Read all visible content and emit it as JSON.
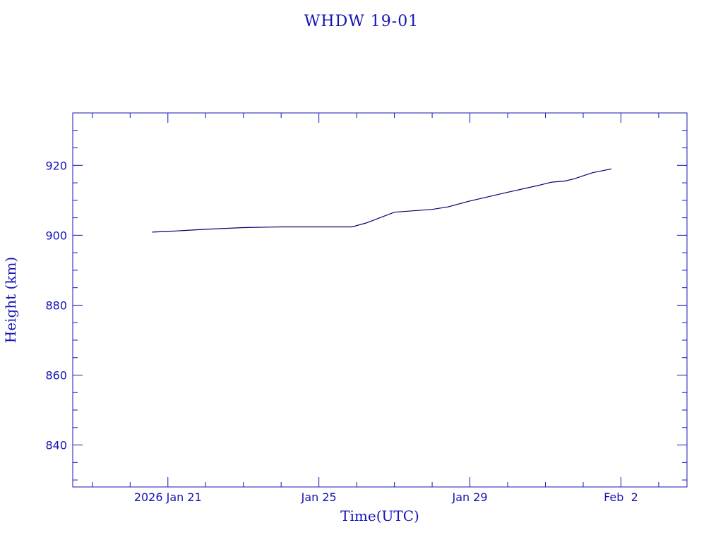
{
  "colors": {
    "axis": "#1414b4",
    "line": "#00006e",
    "background": "#ffffff"
  },
  "chart_data": {
    "type": "line",
    "title": "WHDW 19-01",
    "xlabel": "Time(UTC)",
    "ylabel": "Height (km)",
    "x_unit": "date (UTC), 2026",
    "xlim": [
      "2026-01-18T11:30",
      "2026-02-03T18:00"
    ],
    "ylim": [
      828,
      935
    ],
    "x_tick_labels": [
      "2026 Jan 21",
      "Jan 25",
      "Jan 29",
      "Feb  2"
    ],
    "x_tick_dates": [
      "2026-01-21",
      "2026-01-25",
      "2026-01-29",
      "2026-02-02"
    ],
    "y_ticks": [
      840,
      860,
      880,
      900,
      920
    ],
    "grid": false,
    "series": [
      {
        "x": [
          "2026-01-20T14:00",
          "2026-01-21T00:00",
          "2026-01-22T00:00",
          "2026-01-23T00:00",
          "2026-01-24T00:00",
          "2026-01-25T00:00",
          "2026-01-25T21:00",
          "2026-01-26T06:00",
          "2026-01-27T00:00",
          "2026-01-28T00:00",
          "2026-01-28T10:00",
          "2026-01-29T00:00",
          "2026-01-30T00:00",
          "2026-01-30T19:00",
          "2026-01-31T04:00",
          "2026-01-31T12:00",
          "2026-01-31T18:00",
          "2026-02-01T06:00",
          "2026-02-01T18:00"
        ],
        "y": [
          900.9,
          901.1,
          901.7,
          902.2,
          902.4,
          902.4,
          902.4,
          903.5,
          906.6,
          907.4,
          908.1,
          909.8,
          912.3,
          914.2,
          915.2,
          915.5,
          916.1,
          917.9,
          919.0
        ]
      }
    ]
  }
}
